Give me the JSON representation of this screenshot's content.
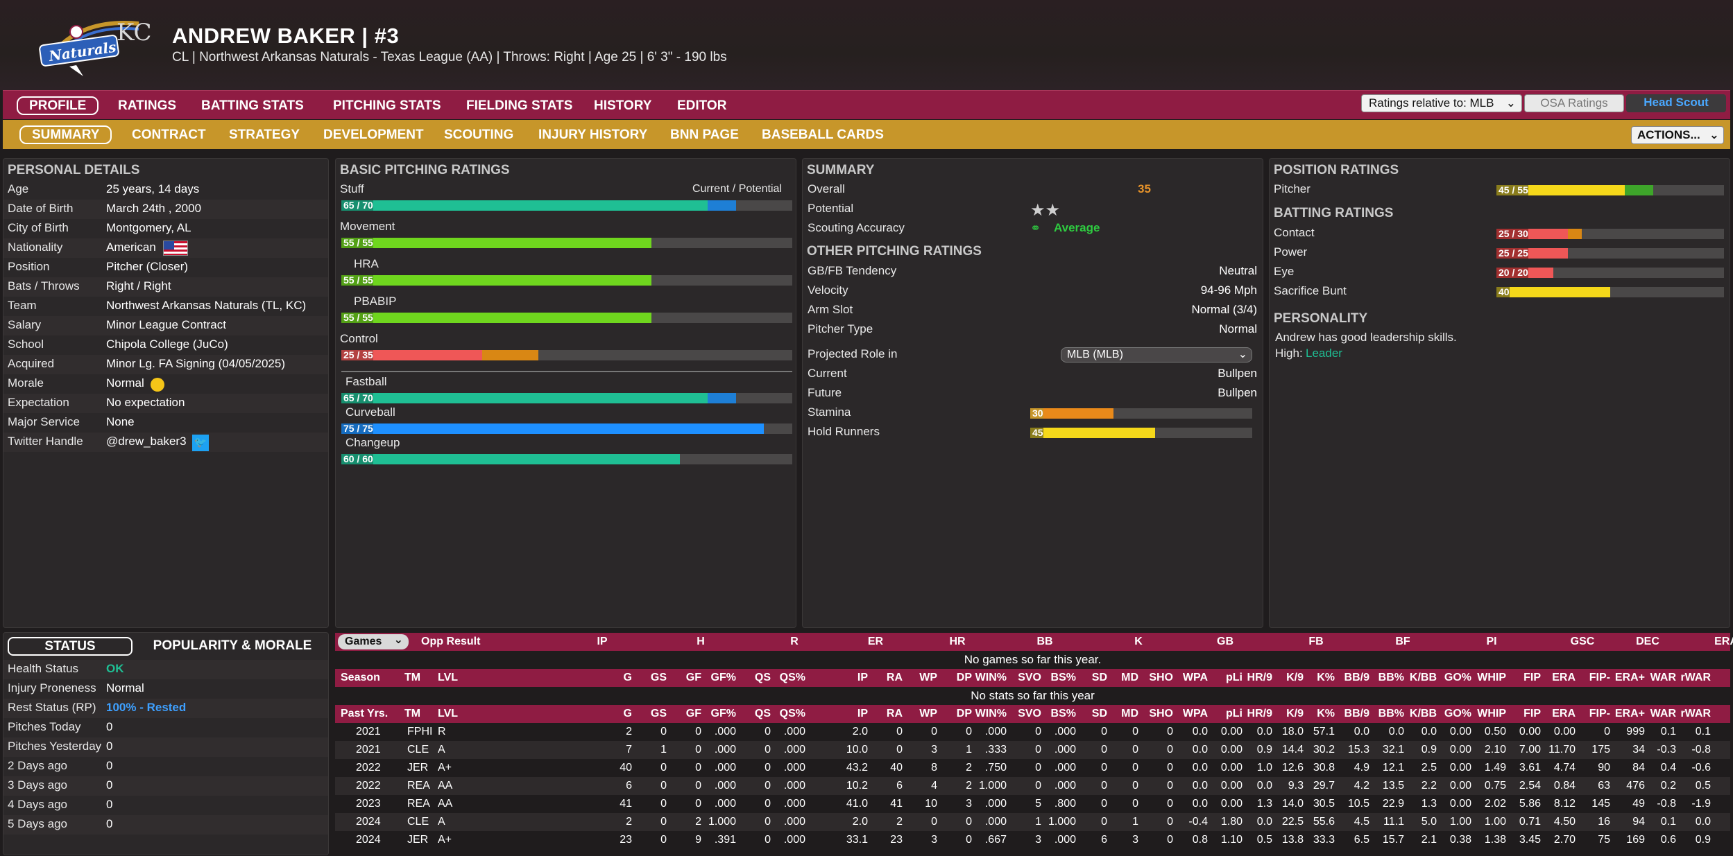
{
  "header": {
    "name": "ANDREW BAKER  |  #3",
    "subtitle": "CL | Northwest Arkansas Naturals - Texas League (AA)  |  Throws: Right  |  Age 25  |  6' 3\" - 190 lbs",
    "logo_text": "Naturals",
    "logo_mark": "KC"
  },
  "nav_main": [
    "PROFILE",
    "RATINGS",
    "BATTING STATS",
    "PITCHING STATS",
    "FIELDING STATS",
    "HISTORY",
    "EDITOR"
  ],
  "ratings_relative": "Ratings relative to: MLB",
  "osa_ratings": "OSA Ratings",
  "head_scout": "Head Scout",
  "nav_sub": [
    "SUMMARY",
    "CONTRACT",
    "STRATEGY",
    "DEVELOPMENT",
    "SCOUTING",
    "INJURY HISTORY",
    "BNN PAGE",
    "BASEBALL CARDS"
  ],
  "actions": "ACTIONS...",
  "personal": {
    "title": "PERSONAL DETAILS",
    "rows": [
      {
        "label": "Age",
        "value": "25 years, 14 days"
      },
      {
        "label": "Date of Birth",
        "value": "March 24th , 2000"
      },
      {
        "label": "City of Birth",
        "value": "Montgomery, AL"
      },
      {
        "label": "Nationality",
        "value": "American"
      },
      {
        "label": "Position",
        "value": "Pitcher (Closer)"
      },
      {
        "label": "Bats / Throws",
        "value": "Right / Right"
      },
      {
        "label": "Team",
        "value": "Northwest Arkansas Naturals (TL, KC)"
      },
      {
        "label": "Salary",
        "value": "Minor League Contract"
      },
      {
        "label": "School",
        "value": "Chipola College (JuCo)"
      },
      {
        "label": "Acquired",
        "value": "Minor Lg. FA Signing (04/05/2025)"
      },
      {
        "label": "Morale",
        "value": "Normal"
      },
      {
        "label": "Expectation",
        "value": "No expectation"
      },
      {
        "label": "Major Service",
        "value": "None"
      },
      {
        "label": "Twitter Handle",
        "value": "@drew_baker3"
      }
    ]
  },
  "pitching": {
    "title": "BASIC PITCHING RATINGS",
    "current_potential": "Current / Potential",
    "items": [
      {
        "name": "Stuff",
        "label": "65 / 70",
        "cur": 65,
        "pot": 70,
        "color": "#1fbf94"
      },
      {
        "name": "Movement",
        "label": "55 / 55",
        "cur": 55,
        "pot": 55,
        "color": "#6fd61e"
      },
      {
        "name": "HRA",
        "label": "55 / 55",
        "cur": 55,
        "pot": 55,
        "color": "#6fd61e"
      },
      {
        "name": "PBABIP",
        "label": "55 / 55",
        "cur": 55,
        "pot": 55,
        "color": "#6fd61e"
      },
      {
        "name": "Control",
        "label": "25 / 35",
        "cur": 25,
        "pot": 35,
        "color": "#ef5757"
      }
    ],
    "pitches": [
      {
        "name": "Fastball",
        "label": "65 / 70",
        "cur": 65,
        "pot": 70,
        "color": "#1fbf94"
      },
      {
        "name": "Curveball",
        "label": "75 / 75",
        "cur": 75,
        "pot": 75,
        "color": "#1e90ff"
      },
      {
        "name": "Changeup",
        "label": "60 / 60",
        "cur": 60,
        "pot": 60,
        "color": "#1fbf94"
      }
    ]
  },
  "summary": {
    "title": "SUMMARY",
    "overall_label": "Overall",
    "overall_value": "35",
    "potential_label": "Potential",
    "scouting_label": "Scouting Accuracy",
    "scouting_value": "Average",
    "other_title": "OTHER PITCHING RATINGS",
    "other": [
      {
        "label": "GB/FB Tendency",
        "value": "Neutral"
      },
      {
        "label": "Velocity",
        "value": "94-96 Mph"
      },
      {
        "label": "Arm Slot",
        "value": "Normal (3/4)"
      },
      {
        "label": "Pitcher Type",
        "value": "Normal"
      }
    ],
    "projected_label": "Projected Role in",
    "projected_value": "MLB (MLB)",
    "current_label": "Current",
    "current_value": "Bullpen",
    "future_label": "Future",
    "future_value": "Bullpen",
    "stamina_label": "Stamina",
    "stamina": 30,
    "hold_label": "Hold Runners",
    "hold": 45
  },
  "position": {
    "title": "POSITION RATINGS",
    "pitcher_label": "Pitcher",
    "pitcher_text": "45 / 55",
    "pitcher_cur": 45,
    "pitcher_pot": 55,
    "batting_title": "BATTING RATINGS",
    "batting": [
      {
        "name": "Contact",
        "label": "25 / 30",
        "cur": 25,
        "pot": 30
      },
      {
        "name": "Power",
        "label": "25 / 25",
        "cur": 25,
        "pot": 25
      },
      {
        "name": "Eye",
        "label": "20 / 20",
        "cur": 20,
        "pot": 20
      },
      {
        "name": "Sacrifice Bunt",
        "label": "40",
        "cur": 40,
        "pot": 40
      }
    ],
    "personality_title": "PERSONALITY",
    "personality_text": "Andrew has good leadership skills.",
    "high_label": "High:",
    "high_value": "Leader"
  },
  "status": {
    "tab1": "STATUS",
    "tab2": "POPULARITY & MORALE",
    "rows": [
      {
        "label": "Health Status",
        "value": "OK",
        "color": "#1fbf94"
      },
      {
        "label": "Injury Proneness",
        "value": "Normal",
        "color": "#ffffff"
      },
      {
        "label": "Rest Status (RP)",
        "value": "100% - Rested",
        "color": "#3ea0ff"
      },
      {
        "label": "Pitches Today",
        "value": "0",
        "color": "#ffffff"
      },
      {
        "label": "Pitches Yesterday",
        "value": "0",
        "color": "#ffffff"
      },
      {
        "label": "2 Days ago",
        "value": "0",
        "color": "#ffffff"
      },
      {
        "label": "3 Days ago",
        "value": "0",
        "color": "#ffffff"
      },
      {
        "label": "4 Days ago",
        "value": "0",
        "color": "#ffffff"
      },
      {
        "label": "5 Days ago",
        "value": "0",
        "color": "#ffffff"
      }
    ]
  },
  "games": {
    "dropdown": "Games",
    "headers": [
      "Opp",
      "Result",
      "IP",
      "H",
      "R",
      "ER",
      "HR",
      "BB",
      "K",
      "GB",
      "FB",
      "BF",
      "PI",
      "GSC",
      "DEC",
      "ERA"
    ],
    "empty": "No games so far this year."
  },
  "season": {
    "headers": [
      "Season",
      "TM",
      "LVL",
      "G",
      "GS",
      "GF",
      "GF%",
      "QS",
      "QS%",
      "IP",
      "RA",
      "WP",
      "DP",
      "WIN%",
      "SVO",
      "BS%",
      "SD",
      "MD",
      "SHO",
      "WPA",
      "pLi",
      "HR/9",
      "K/9",
      "K%",
      "BB/9",
      "BB%",
      "K/BB",
      "GO%",
      "WHIP",
      "FIP",
      "ERA",
      "FIP-",
      "ERA+",
      "WAR",
      "rWAR"
    ],
    "empty": "No stats so far this year"
  },
  "past": {
    "headers": [
      "Past Yrs.",
      "TM",
      "LVL",
      "G",
      "GS",
      "GF",
      "GF%",
      "QS",
      "QS%",
      "IP",
      "RA",
      "WP",
      "DP",
      "WIN%",
      "SVO",
      "BS%",
      "SD",
      "MD",
      "SHO",
      "WPA",
      "pLi",
      "HR/9",
      "K/9",
      "K%",
      "BB/9",
      "BB%",
      "K/BB",
      "GO%",
      "WHIP",
      "FIP",
      "ERA",
      "FIP-",
      "ERA+",
      "WAR",
      "rWAR"
    ],
    "rows": [
      [
        "2021",
        "FPHI",
        "R",
        "2",
        "0",
        "0",
        ".000",
        "0",
        ".000",
        "2.0",
        "0",
        "0",
        "0",
        ".000",
        "0",
        ".000",
        "0",
        "0",
        "0",
        "0.0",
        "0.00",
        "0.0",
        "18.0",
        "57.1",
        "0.0",
        "0.0",
        "0.0",
        "0.00",
        "0.50",
        "0.00",
        "0.00",
        "0",
        "999",
        "0.1",
        "0.1"
      ],
      [
        "2021",
        "CLE",
        "A",
        "7",
        "1",
        "0",
        ".000",
        "0",
        ".000",
        "10.0",
        "0",
        "3",
        "1",
        ".333",
        "0",
        ".000",
        "0",
        "0",
        "0",
        "0.0",
        "0.00",
        "0.9",
        "14.4",
        "30.2",
        "15.3",
        "32.1",
        "0.9",
        "0.00",
        "2.10",
        "7.00",
        "11.70",
        "175",
        "34",
        "-0.3",
        "-0.8"
      ],
      [
        "2022",
        "JER",
        "A+",
        "40",
        "0",
        "0",
        ".000",
        "0",
        ".000",
        "43.2",
        "40",
        "8",
        "2",
        ".750",
        "0",
        ".000",
        "0",
        "0",
        "0",
        "0.0",
        "0.00",
        "1.0",
        "12.6",
        "30.8",
        "4.9",
        "12.1",
        "2.5",
        "0.00",
        "1.49",
        "3.61",
        "4.74",
        "90",
        "84",
        "0.4",
        "-0.6"
      ],
      [
        "2022",
        "REA",
        "AA",
        "6",
        "0",
        "0",
        ".000",
        "0",
        ".000",
        "10.2",
        "6",
        "4",
        "2",
        "1.000",
        "0",
        ".000",
        "0",
        "0",
        "0",
        "0.0",
        "0.00",
        "0.0",
        "9.3",
        "29.7",
        "4.2",
        "13.5",
        "2.2",
        "0.00",
        "0.75",
        "2.54",
        "0.84",
        "63",
        "476",
        "0.2",
        "0.5"
      ],
      [
        "2023",
        "REA",
        "AA",
        "41",
        "0",
        "0",
        ".000",
        "0",
        ".000",
        "41.0",
        "41",
        "10",
        "3",
        ".000",
        "5",
        ".800",
        "0",
        "0",
        "0",
        "0.0",
        "0.00",
        "1.3",
        "14.0",
        "30.5",
        "10.5",
        "22.9",
        "1.3",
        "0.00",
        "2.02",
        "5.86",
        "8.12",
        "145",
        "49",
        "-0.8",
        "-1.9"
      ],
      [
        "2024",
        "CLE",
        "A",
        "2",
        "0",
        "2",
        "1.000",
        "0",
        ".000",
        "2.0",
        "2",
        "0",
        "0",
        ".000",
        "1",
        "1.000",
        "0",
        "1",
        "0",
        "-0.4",
        "1.80",
        "0.0",
        "22.5",
        "55.6",
        "4.5",
        "11.1",
        "5.0",
        "1.00",
        "1.00",
        "0.71",
        "4.50",
        "16",
        "94",
        "0.1",
        "0.0"
      ],
      [
        "2024",
        "JER",
        "A+",
        "23",
        "0",
        "9",
        ".391",
        "0",
        ".000",
        "33.1",
        "23",
        "3",
        "0",
        ".667",
        "3",
        ".000",
        "6",
        "3",
        "0",
        "0.8",
        "1.10",
        "0.5",
        "13.8",
        "33.3",
        "6.5",
        "15.7",
        "2.1",
        "0.38",
        "1.38",
        "3.45",
        "2.70",
        "75",
        "169",
        "0.6",
        "0.9"
      ]
    ]
  }
}
